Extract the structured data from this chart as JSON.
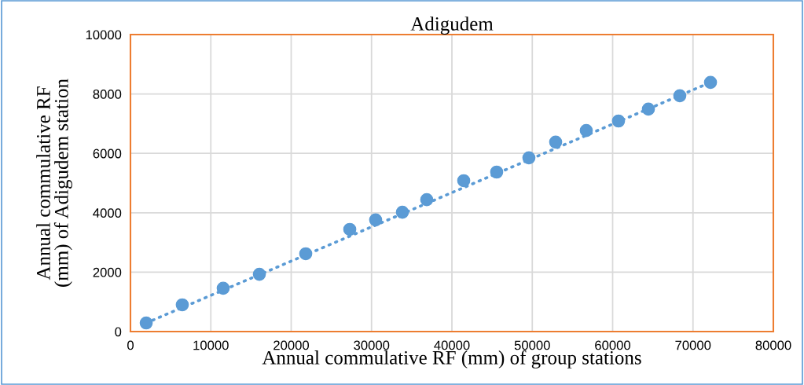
{
  "chart_data": {
    "type": "scatter",
    "title": "Adigudem",
    "xlabel": "Annual commulative RF (mm) of group stations",
    "ylabel": "Annual commulative RF\n(mm) of Adigudem station",
    "series": [
      {
        "color": "#5b9bd5",
        "marker": "circle",
        "x": [
          1960,
          6450,
          11540,
          16040,
          21810,
          27290,
          30510,
          33840,
          36870,
          41470,
          45570,
          49580,
          52910,
          56720,
          60730,
          64450,
          68360,
          72180
        ],
        "values": [
          290,
          900,
          1460,
          1930,
          2620,
          3440,
          3760,
          4020,
          4440,
          5080,
          5370,
          5850,
          6380,
          6770,
          7090,
          7490,
          7940,
          8390
        ]
      },
      {
        "type": "line",
        "color": "#5b9bd5",
        "marker": "none",
        "line_style": "dotted",
        "x": [
          1960,
          72180
        ],
        "values": [
          290,
          8390
        ]
      }
    ],
    "xlim": [
      0,
      80000
    ],
    "xticks": [
      0,
      10000,
      20000,
      30000,
      40000,
      50000,
      60000,
      70000,
      80000
    ],
    "ylim": [
      0,
      10000
    ],
    "yticks": [
      0,
      2000,
      4000,
      6000,
      8000,
      10000
    ],
    "grid": true
  }
}
